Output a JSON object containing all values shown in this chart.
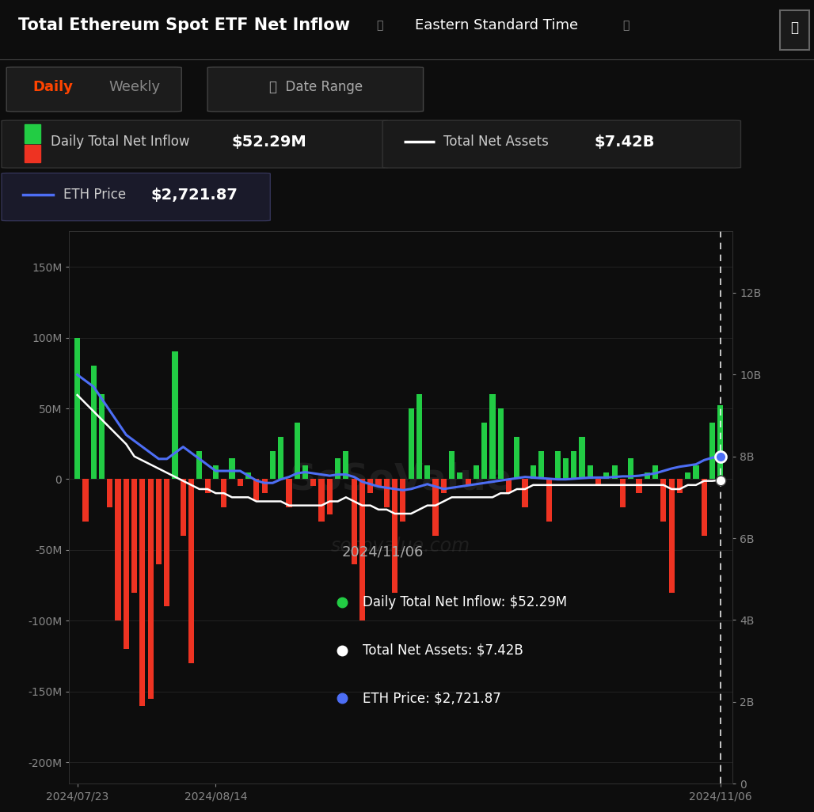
{
  "title": "Total Ethereum Spot ETF Net Inflow",
  "subtitle": "Eastern Standard Time",
  "bg_color": "#0d0d0d",
  "panel_bg": "#1a1a1a",
  "left_ylim": [
    -215,
    175
  ],
  "right_ylim": [
    0,
    13.5
  ],
  "left_yticks": [
    -200,
    -150,
    -100,
    -50,
    0,
    50,
    100,
    150
  ],
  "right_yticks": [
    0,
    2,
    4,
    6,
    8,
    10,
    12
  ],
  "left_ytick_labels": [
    "-200M",
    "-150M",
    "-100M",
    "-50M",
    "0",
    "50M",
    "100M",
    "150M"
  ],
  "right_ytick_labels": [
    "0",
    "2B",
    "4B",
    "6B",
    "8B",
    "10B",
    "12B"
  ],
  "xtick_labels": [
    "2024/07/23",
    "2024/08/14",
    "2024/11/06"
  ],
  "xtick_positions": [
    0,
    17,
    79
  ],
  "grid_color": "#2a2a2a",
  "axis_color": "#888888",
  "legend1_label": "Daily Total Net Inflow",
  "legend1_value": "$52.29M",
  "legend2_label": "Total Net Assets",
  "legend2_value": "$7.42B",
  "legend3_label": "ETH Price",
  "legend3_value": "$2,721.87",
  "bar_positive_color": "#22cc44",
  "bar_negative_color": "#ee3322",
  "line_assets_color": "#ffffff",
  "line_eth_color": "#4d6ef5",
  "tooltip_bg": "#252530",
  "tooltip_date": "2024/11/06",
  "tooltip_inflow": "$52.29M",
  "tooltip_assets": "$7.42B",
  "tooltip_eth": "$2,721.87",
  "n_bars": 80,
  "bar_values": [
    100,
    -30,
    80,
    60,
    -20,
    -100,
    -120,
    -80,
    -160,
    -155,
    -60,
    -90,
    90,
    -40,
    -130,
    20,
    -10,
    10,
    -20,
    15,
    -5,
    5,
    -15,
    -10,
    20,
    30,
    -20,
    40,
    10,
    -5,
    -30,
    -25,
    15,
    20,
    -60,
    -100,
    -10,
    -5,
    -20,
    -80,
    -30,
    50,
    60,
    10,
    -40,
    -10,
    20,
    5,
    -5,
    10,
    40,
    60,
    50,
    -10,
    30,
    -20,
    10,
    20,
    -30,
    20,
    15,
    20,
    30,
    10,
    -5,
    5,
    10,
    -20,
    15,
    -10,
    5,
    10,
    -30,
    -80,
    -10,
    5,
    10,
    -40,
    40,
    52
  ],
  "assets_values": [
    9.5,
    9.3,
    9.1,
    8.9,
    8.7,
    8.5,
    8.3,
    8.0,
    7.9,
    7.8,
    7.7,
    7.6,
    7.5,
    7.4,
    7.3,
    7.2,
    7.2,
    7.1,
    7.1,
    7.0,
    7.0,
    7.0,
    6.9,
    6.9,
    6.9,
    6.9,
    6.8,
    6.8,
    6.8,
    6.8,
    6.8,
    6.9,
    6.9,
    7.0,
    6.9,
    6.8,
    6.8,
    6.7,
    6.7,
    6.6,
    6.6,
    6.6,
    6.7,
    6.8,
    6.8,
    6.9,
    7.0,
    7.0,
    7.0,
    7.0,
    7.0,
    7.0,
    7.1,
    7.1,
    7.2,
    7.2,
    7.3,
    7.3,
    7.3,
    7.3,
    7.3,
    7.3,
    7.3,
    7.3,
    7.3,
    7.3,
    7.3,
    7.3,
    7.3,
    7.3,
    7.3,
    7.3,
    7.3,
    7.2,
    7.2,
    7.3,
    7.3,
    7.4,
    7.4,
    7.42
  ],
  "eth_values": [
    3400,
    3350,
    3300,
    3200,
    3100,
    3000,
    2900,
    2850,
    2800,
    2750,
    2700,
    2700,
    2750,
    2800,
    2750,
    2700,
    2650,
    2600,
    2600,
    2600,
    2600,
    2560,
    2520,
    2500,
    2500,
    2530,
    2550,
    2580,
    2590,
    2580,
    2570,
    2560,
    2570,
    2570,
    2550,
    2510,
    2490,
    2470,
    2460,
    2450,
    2440,
    2450,
    2470,
    2490,
    2470,
    2450,
    2460,
    2470,
    2480,
    2490,
    2500,
    2510,
    2520,
    2530,
    2540,
    2550,
    2545,
    2540,
    2535,
    2530,
    2530,
    2535,
    2540,
    2545,
    2545,
    2545,
    2550,
    2555,
    2555,
    2560,
    2570,
    2580,
    2600,
    2620,
    2635,
    2645,
    2655,
    2690,
    2710,
    2721
  ]
}
